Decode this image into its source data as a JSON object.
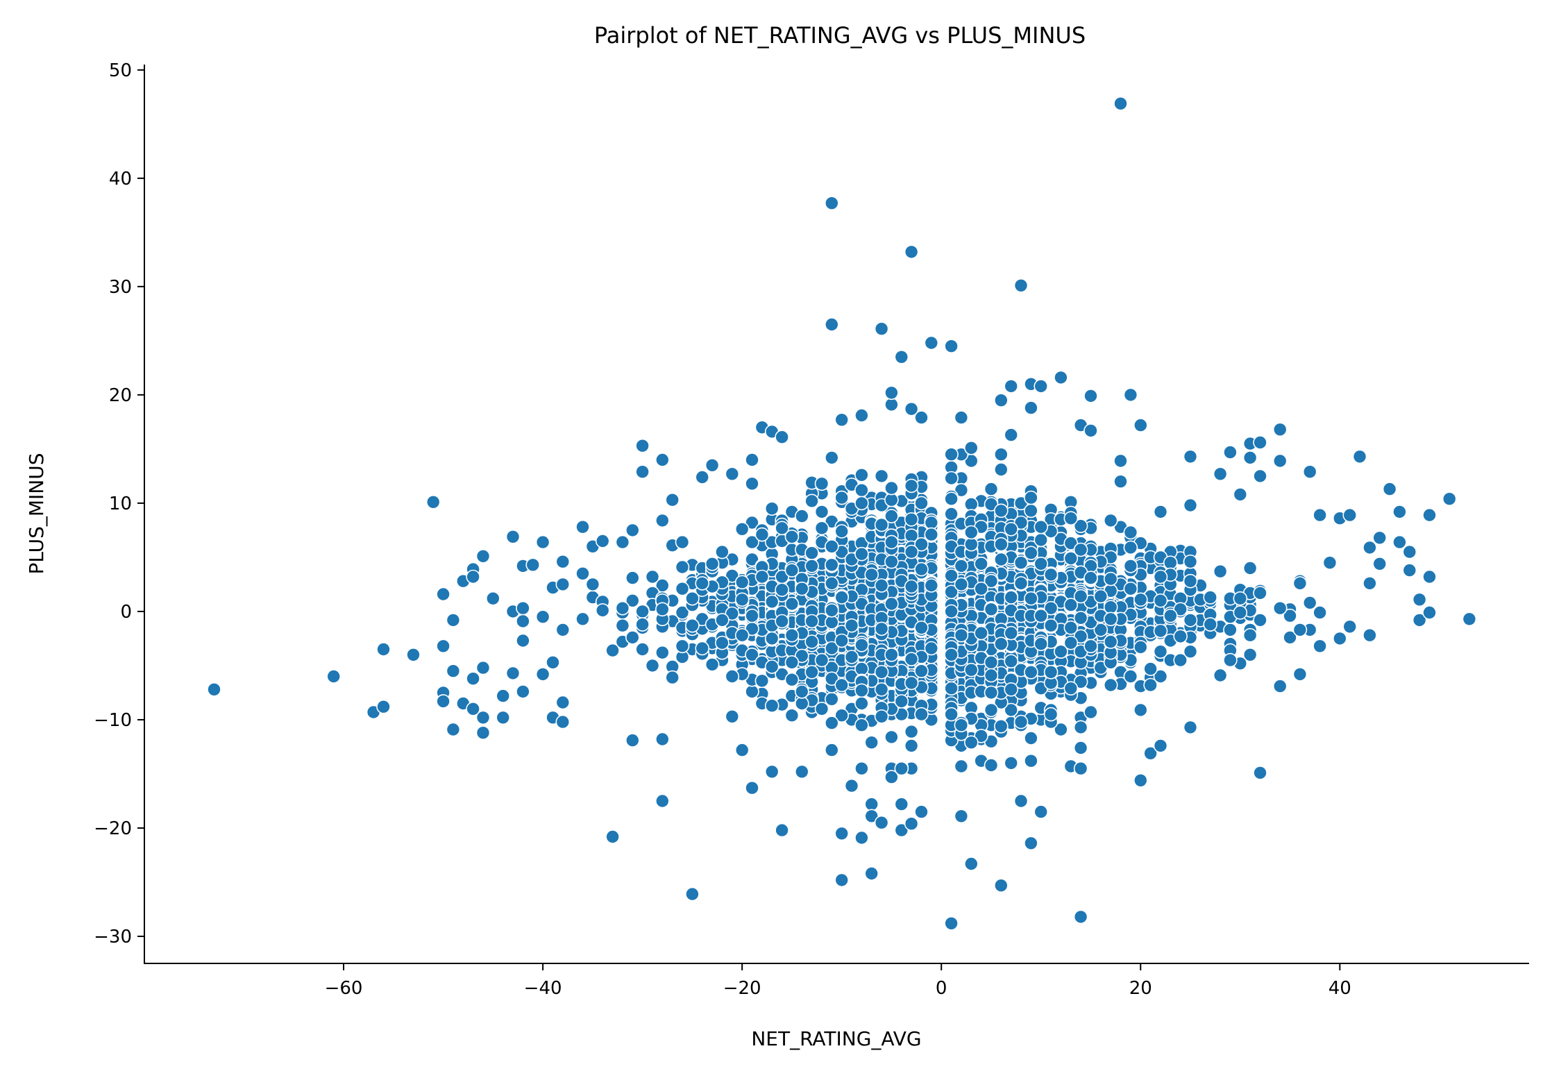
{
  "chart_data": {
    "type": "scatter",
    "title": "Pairplot of NET_RATING_AVG vs PLUS_MINUS",
    "xlabel": "NET_RATING_AVG",
    "ylabel": "PLUS_MINUS",
    "xlim": [
      -80,
      59
    ],
    "ylim": [
      -32.5,
      50.5
    ],
    "xticks": [
      -60,
      -40,
      -20,
      0,
      20,
      40
    ],
    "xtick_labels": [
      "−60",
      "−40",
      "−20",
      "0",
      "20",
      "40"
    ],
    "yticks": [
      -30,
      -20,
      -10,
      0,
      10,
      20,
      30,
      40,
      50
    ],
    "ytick_labels": [
      "−30",
      "−20",
      "−10",
      "0",
      "10",
      "20",
      "30",
      "40",
      "50"
    ],
    "grid": false,
    "legend": "none",
    "color": "#1f77b4",
    "approx_point_count": 12000,
    "dense_cluster": {
      "description_region": "central mass",
      "x_range": [
        -35,
        35
      ],
      "y_range": [
        -15,
        15
      ]
    },
    "points": [
      [
        -73,
        -7.2
      ],
      [
        -61,
        -6
      ],
      [
        -57,
        -9.3
      ],
      [
        -56,
        -3.5
      ],
      [
        -56,
        -8.8
      ],
      [
        -53,
        -4
      ],
      [
        -51,
        10.1
      ],
      [
        -50,
        1.6
      ],
      [
        -50,
        -3.2
      ],
      [
        -50,
        -7.5
      ],
      [
        -50,
        -8.3
      ],
      [
        -49,
        -0.8
      ],
      [
        -49,
        -5.5
      ],
      [
        -49,
        -10.9
      ],
      [
        -48,
        2.8
      ],
      [
        -48,
        -8.5
      ],
      [
        -47,
        3.9
      ],
      [
        -47,
        3.2
      ],
      [
        -47,
        -6.2
      ],
      [
        -47,
        -9
      ],
      [
        -46,
        5.1
      ],
      [
        -46,
        -5.2
      ],
      [
        -46,
        -9.8
      ],
      [
        -46,
        -11.2
      ],
      [
        -45,
        1.2
      ],
      [
        -44,
        -7.8
      ],
      [
        -44,
        -9.8
      ],
      [
        -43,
        6.9
      ],
      [
        -43,
        0
      ],
      [
        -43,
        -5.7
      ],
      [
        -42,
        4.2
      ],
      [
        -42,
        0.3
      ],
      [
        -42,
        -0.9
      ],
      [
        -42,
        -2.7
      ],
      [
        -42,
        -7.4
      ],
      [
        -41,
        4.3
      ],
      [
        -40,
        6.4
      ],
      [
        -40,
        -0.5
      ],
      [
        -40,
        -5.8
      ],
      [
        -39,
        2.2
      ],
      [
        -39,
        -4.7
      ],
      [
        -39,
        -9.8
      ],
      [
        -38,
        4.6
      ],
      [
        -38,
        2.5
      ],
      [
        -38,
        -8.4
      ],
      [
        -38,
        -10.2
      ],
      [
        -36,
        7.8
      ],
      [
        -36,
        3.5
      ],
      [
        -35,
        6
      ],
      [
        -34,
        6.5
      ],
      [
        -33,
        -20.8
      ],
      [
        -32,
        6.4
      ],
      [
        -31,
        7.5
      ],
      [
        -31,
        -11.9
      ],
      [
        -30,
        15.3
      ],
      [
        -30,
        12.9
      ],
      [
        -28,
        14
      ],
      [
        -28,
        8.4
      ],
      [
        -28,
        -11.8
      ],
      [
        -28,
        -17.5
      ],
      [
        -27,
        10.3
      ],
      [
        -25,
        -26.1
      ],
      [
        -24,
        12.4
      ],
      [
        -23,
        13.5
      ],
      [
        -21,
        12.7
      ],
      [
        -20,
        -12.8
      ],
      [
        -19,
        14
      ],
      [
        -19,
        11.8
      ],
      [
        -19,
        -16.3
      ],
      [
        -18,
        17
      ],
      [
        -17,
        16.6
      ],
      [
        -17,
        -14.8
      ],
      [
        -16,
        16.1
      ],
      [
        -16,
        -20.2
      ],
      [
        -14,
        -14.8
      ],
      [
        -12,
        11.8
      ],
      [
        -11,
        37.7
      ],
      [
        -11,
        26.5
      ],
      [
        -11,
        14.2
      ],
      [
        -11,
        -12.8
      ],
      [
        -10,
        17.7
      ],
      [
        -10,
        -20.5
      ],
      [
        -10,
        -24.8
      ],
      [
        -9,
        -16.1
      ],
      [
        -8,
        18.1
      ],
      [
        -8,
        -20.9
      ],
      [
        -7,
        -17.8
      ],
      [
        -7,
        -18.9
      ],
      [
        -7,
        -24.2
      ],
      [
        -6,
        26.1
      ],
      [
        -6,
        -19.5
      ],
      [
        -5,
        19.1
      ],
      [
        -5,
        20.2
      ],
      [
        -5,
        -15.3
      ],
      [
        -4,
        23.5
      ],
      [
        -4,
        -17.8
      ],
      [
        -4,
        -20.2
      ],
      [
        -3,
        33.2
      ],
      [
        -3,
        18.7
      ],
      [
        -3,
        -19.6
      ],
      [
        -2,
        17.9
      ],
      [
        -2,
        -18.5
      ],
      [
        -1,
        24.8
      ],
      [
        1,
        24.5
      ],
      [
        1,
        -28.8
      ],
      [
        2,
        17.9
      ],
      [
        2,
        -14.3
      ],
      [
        2,
        -18.9
      ],
      [
        3,
        -23.3
      ],
      [
        3,
        15.1
      ],
      [
        4,
        -13.8
      ],
      [
        5,
        -14.2
      ],
      [
        6,
        19.5
      ],
      [
        6,
        -25.3
      ],
      [
        7,
        20.8
      ],
      [
        7,
        16.3
      ],
      [
        8,
        30.1
      ],
      [
        8,
        -17.5
      ],
      [
        9,
        18.8
      ],
      [
        9,
        21
      ],
      [
        9,
        -13.8
      ],
      [
        9,
        -21.4
      ],
      [
        10,
        20.8
      ],
      [
        10,
        -18.5
      ],
      [
        12,
        21.6
      ],
      [
        13,
        -14.3
      ],
      [
        14,
        17.2
      ],
      [
        14,
        -14.5
      ],
      [
        14,
        -28.2
      ],
      [
        15,
        19.9
      ],
      [
        15,
        16.7
      ],
      [
        18,
        46.9
      ],
      [
        18,
        13.9
      ],
      [
        19,
        20
      ],
      [
        20,
        17.2
      ],
      [
        20,
        -15.6
      ],
      [
        21,
        -13.1
      ],
      [
        22,
        -12.4
      ],
      [
        25,
        -10.7
      ],
      [
        25,
        14.3
      ],
      [
        28,
        12.7
      ],
      [
        29,
        14.7
      ],
      [
        30,
        10.8
      ],
      [
        31,
        15.5
      ],
      [
        31,
        14.2
      ],
      [
        32,
        15.6
      ],
      [
        32,
        -14.9
      ],
      [
        32,
        12.5
      ],
      [
        34,
        16.8
      ],
      [
        34,
        13.9
      ],
      [
        34,
        -6.9
      ],
      [
        36,
        -5.8
      ],
      [
        37,
        12.9
      ],
      [
        38,
        8.9
      ],
      [
        39,
        4.5
      ],
      [
        40,
        8.6
      ],
      [
        40,
        -2.5
      ],
      [
        41,
        8.9
      ],
      [
        41,
        -1.4
      ],
      [
        42,
        14.3
      ],
      [
        43,
        5.9
      ],
      [
        43,
        2.6
      ],
      [
        43,
        -2.2
      ],
      [
        44,
        6.8
      ],
      [
        44,
        4.4
      ],
      [
        45,
        11.3
      ],
      [
        46,
        9.2
      ],
      [
        46,
        6.4
      ],
      [
        47,
        5.5
      ],
      [
        47,
        3.8
      ],
      [
        48,
        1.1
      ],
      [
        48,
        -0.8
      ],
      [
        49,
        8.9
      ],
      [
        49,
        3.2
      ],
      [
        49,
        -0.1
      ],
      [
        51,
        10.4
      ],
      [
        53,
        -0.7
      ]
    ]
  }
}
